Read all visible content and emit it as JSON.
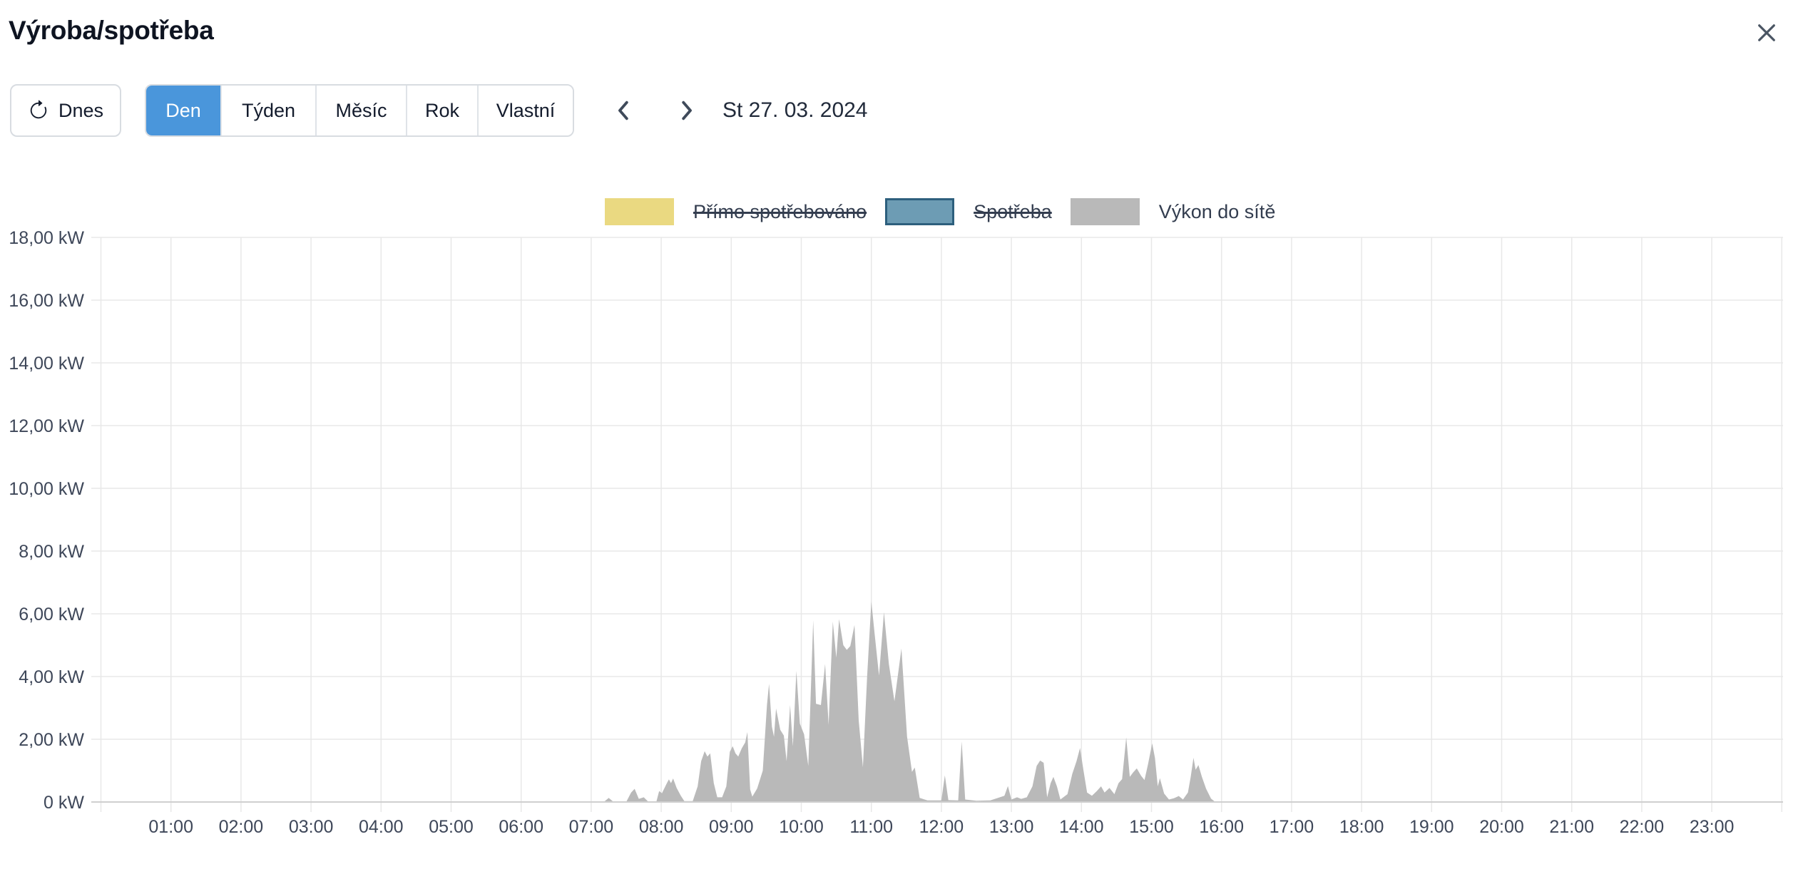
{
  "header": {
    "title": "Výroba/spotřeba"
  },
  "toolbar": {
    "today_label": "Dnes",
    "range_tabs": [
      {
        "label": "Den",
        "active": true
      },
      {
        "label": "Týden",
        "active": false
      },
      {
        "label": "Měsíc",
        "active": false
      },
      {
        "label": "Rok",
        "active": false
      },
      {
        "label": "Vlastní",
        "active": false
      }
    ],
    "date_label": "St 27. 03. 2024"
  },
  "legend": [
    {
      "label": "Přímo spotřebováno",
      "color": "#ead981",
      "border": "#ead981",
      "disabled": true
    },
    {
      "label": "Spotřeba",
      "color": "#6d9cb4",
      "border": "#2d5f7d",
      "disabled": true
    },
    {
      "label": "Výkon do sítě",
      "color": "#b9b9b9",
      "border": "#b9b9b9",
      "disabled": false
    }
  ],
  "colors": {
    "accent": "#4a96db",
    "grid": "#e8e8e8",
    "zero_axis": "#cfcfcf",
    "axis_text": "#3e4759",
    "area": "#b9b9b9"
  },
  "chart_data": {
    "type": "area",
    "title": "Výroba/spotřeba — Den, St 27. 03. 2024",
    "unit": "kW",
    "grid": true,
    "legend_position": "top-center",
    "x_axis": {
      "start_hour": 0,
      "end_hour": 24,
      "tick_hours": [
        1,
        2,
        3,
        4,
        5,
        6,
        7,
        8,
        9,
        10,
        11,
        12,
        13,
        14,
        15,
        16,
        17,
        18,
        19,
        20,
        21,
        22,
        23
      ],
      "tick_labels": [
        "01:00",
        "02:00",
        "03:00",
        "04:00",
        "05:00",
        "06:00",
        "07:00",
        "08:00",
        "09:00",
        "10:00",
        "11:00",
        "12:00",
        "13:00",
        "14:00",
        "15:00",
        "16:00",
        "17:00",
        "18:00",
        "19:00",
        "20:00",
        "21:00",
        "22:00",
        "23:00"
      ]
    },
    "y_axis": {
      "min": 0,
      "max": 18,
      "step": 2,
      "tick_values": [
        0,
        2,
        4,
        6,
        8,
        10,
        12,
        14,
        16,
        18
      ],
      "tick_labels": [
        "0 kW",
        "2,00 kW",
        "4,00 kW",
        "6,00 kW",
        "8,00 kW",
        "10,00 kW",
        "12,00 kW",
        "14,00 kW",
        "16,00 kW",
        "18,00 kW"
      ]
    },
    "series": [
      {
        "name": "Výkon do sítě",
        "color": "#b9b9b9",
        "visible": true,
        "points": [
          [
            0,
            0
          ],
          [
            6.9,
            0
          ],
          [
            7.18,
            0
          ],
          [
            7.25,
            0.13
          ],
          [
            7.32,
            0
          ],
          [
            7.5,
            0
          ],
          [
            7.57,
            0.3
          ],
          [
            7.62,
            0.42
          ],
          [
            7.68,
            0.1
          ],
          [
            7.75,
            0.15
          ],
          [
            7.82,
            0
          ],
          [
            7.93,
            0
          ],
          [
            7.97,
            0.35
          ],
          [
            8.01,
            0.28
          ],
          [
            8.08,
            0.6
          ],
          [
            8.11,
            0.72
          ],
          [
            8.14,
            0.6
          ],
          [
            8.17,
            0.75
          ],
          [
            8.22,
            0.45
          ],
          [
            8.28,
            0.2
          ],
          [
            8.33,
            0.03
          ],
          [
            8.45,
            0.03
          ],
          [
            8.52,
            0.5
          ],
          [
            8.57,
            1.3
          ],
          [
            8.62,
            1.62
          ],
          [
            8.66,
            1.45
          ],
          [
            8.7,
            1.55
          ],
          [
            8.75,
            0.6
          ],
          [
            8.8,
            0.15
          ],
          [
            8.87,
            0.15
          ],
          [
            8.93,
            0.5
          ],
          [
            8.98,
            1.6
          ],
          [
            9.02,
            1.78
          ],
          [
            9.06,
            1.55
          ],
          [
            9.1,
            1.45
          ],
          [
            9.15,
            1.71
          ],
          [
            9.2,
            1.9
          ],
          [
            9.23,
            2.23
          ],
          [
            9.27,
            0.4
          ],
          [
            9.3,
            0.17
          ],
          [
            9.37,
            0.43
          ],
          [
            9.45,
            1.0
          ],
          [
            9.51,
            3.1
          ],
          [
            9.54,
            3.77
          ],
          [
            9.58,
            2.4
          ],
          [
            9.61,
            2.08
          ],
          [
            9.64,
            2.98
          ],
          [
            9.7,
            2.3
          ],
          [
            9.75,
            2.12
          ],
          [
            9.79,
            1.3
          ],
          [
            9.84,
            3.09
          ],
          [
            9.88,
            1.78
          ],
          [
            9.93,
            4.18
          ],
          [
            9.98,
            2.5
          ],
          [
            10.04,
            2.16
          ],
          [
            10.1,
            1.15
          ],
          [
            10.17,
            5.79
          ],
          [
            10.21,
            3.13
          ],
          [
            10.28,
            3.09
          ],
          [
            10.34,
            4.4
          ],
          [
            10.39,
            2.46
          ],
          [
            10.45,
            5.75
          ],
          [
            10.5,
            4.6
          ],
          [
            10.54,
            5.83
          ],
          [
            10.6,
            5.0
          ],
          [
            10.65,
            4.85
          ],
          [
            10.7,
            4.97
          ],
          [
            10.76,
            5.64
          ],
          [
            10.82,
            2.6
          ],
          [
            10.88,
            1.11
          ],
          [
            10.94,
            4.0
          ],
          [
            11.0,
            6.39
          ],
          [
            11.05,
            5.3
          ],
          [
            11.11,
            4.03
          ],
          [
            11.18,
            6.05
          ],
          [
            11.25,
            4.4
          ],
          [
            11.33,
            3.21
          ],
          [
            11.43,
            4.89
          ],
          [
            11.51,
            2.08
          ],
          [
            11.58,
            0.96
          ],
          [
            11.62,
            1.1
          ],
          [
            11.69,
            0.13
          ],
          [
            11.8,
            0.05
          ],
          [
            12.0,
            0.05
          ],
          [
            12.05,
            0.85
          ],
          [
            12.1,
            0.06
          ],
          [
            12.24,
            0.05
          ],
          [
            12.29,
            1.93
          ],
          [
            12.34,
            0.08
          ],
          [
            12.5,
            0.04
          ],
          [
            12.7,
            0.05
          ],
          [
            12.9,
            0.2
          ],
          [
            12.95,
            0.51
          ],
          [
            13.0,
            0.08
          ],
          [
            13.08,
            0.15
          ],
          [
            13.14,
            0.1
          ],
          [
            13.22,
            0.15
          ],
          [
            13.3,
            0.5
          ],
          [
            13.36,
            1.15
          ],
          [
            13.41,
            1.32
          ],
          [
            13.46,
            1.25
          ],
          [
            13.51,
            0.15
          ],
          [
            13.56,
            0.6
          ],
          [
            13.6,
            0.8
          ],
          [
            13.65,
            0.5
          ],
          [
            13.7,
            0.08
          ],
          [
            13.8,
            0.25
          ],
          [
            13.87,
            0.9
          ],
          [
            13.93,
            1.3
          ],
          [
            13.98,
            1.72
          ],
          [
            14.03,
            1.0
          ],
          [
            14.08,
            0.3
          ],
          [
            14.15,
            0.2
          ],
          [
            14.22,
            0.35
          ],
          [
            14.28,
            0.5
          ],
          [
            14.33,
            0.3
          ],
          [
            14.4,
            0.45
          ],
          [
            14.47,
            0.25
          ],
          [
            14.53,
            0.6
          ],
          [
            14.58,
            0.73
          ],
          [
            14.64,
            2.06
          ],
          [
            14.69,
            0.8
          ],
          [
            14.74,
            0.95
          ],
          [
            14.79,
            1.07
          ],
          [
            14.85,
            0.84
          ],
          [
            14.9,
            0.7
          ],
          [
            14.95,
            1.2
          ],
          [
            15.01,
            1.87
          ],
          [
            15.05,
            1.4
          ],
          [
            15.09,
            0.5
          ],
          [
            15.12,
            0.76
          ],
          [
            15.18,
            0.27
          ],
          [
            15.25,
            0.08
          ],
          [
            15.32,
            0.12
          ],
          [
            15.39,
            0.19
          ],
          [
            15.45,
            0.08
          ],
          [
            15.52,
            0.3
          ],
          [
            15.56,
            0.8
          ],
          [
            15.6,
            1.41
          ],
          [
            15.63,
            1.03
          ],
          [
            15.67,
            1.18
          ],
          [
            15.72,
            0.8
          ],
          [
            15.78,
            0.42
          ],
          [
            15.85,
            0.11
          ],
          [
            15.91,
            0
          ],
          [
            16.0,
            0
          ],
          [
            24,
            0
          ]
        ]
      },
      {
        "name": "Přímo spotřebováno",
        "color": "#ead981",
        "visible": false,
        "points": []
      },
      {
        "name": "Spotřeba",
        "color": "#6d9cb4",
        "visible": false,
        "points": []
      }
    ]
  }
}
